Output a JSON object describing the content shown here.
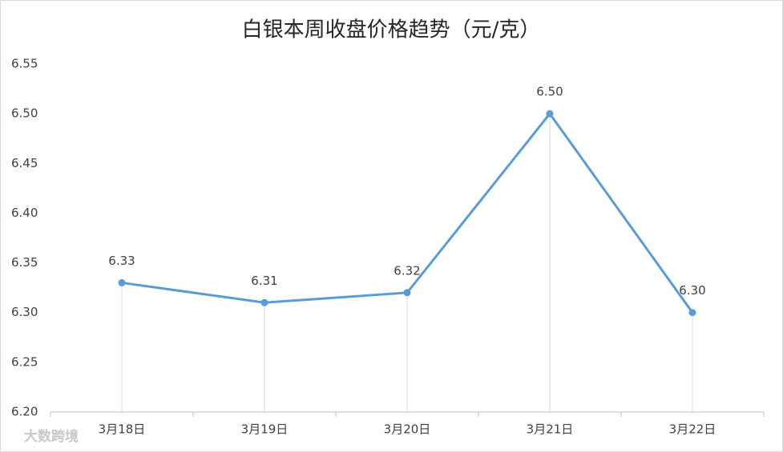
{
  "chart_data": {
    "type": "line",
    "title": "白银本周收盘价格趋势（元/克）",
    "categories": [
      "3月18日",
      "3月19日",
      "3月20日",
      "3月21日",
      "3月22日"
    ],
    "values": [
      6.33,
      6.31,
      6.32,
      6.5,
      6.3
    ],
    "value_labels": [
      "6.33",
      "6.31",
      "6.32",
      "6.50",
      "6.30"
    ],
    "color": "#5b9bd5",
    "ylim": [
      6.2,
      6.55
    ],
    "yticks": [
      {
        "value": 6.2,
        "label": "6.20"
      },
      {
        "value": 6.25,
        "label": "6.25"
      },
      {
        "value": 6.3,
        "label": "6.30"
      },
      {
        "value": 6.35,
        "label": "6.35"
      },
      {
        "value": 6.4,
        "label": "6.40"
      },
      {
        "value": 6.45,
        "label": "6.45"
      },
      {
        "value": 6.5,
        "label": "6.50"
      },
      {
        "value": 6.55,
        "label": "6.55"
      }
    ],
    "drop_lines": true,
    "watermark": "大数跨境"
  }
}
